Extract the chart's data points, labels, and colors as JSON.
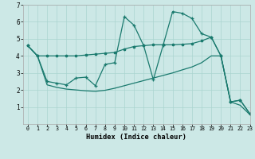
{
  "xlabel": "Humidex (Indice chaleur)",
  "xlim": [
    -0.5,
    23
  ],
  "ylim": [
    0,
    7
  ],
  "yticks": [
    1,
    2,
    3,
    4,
    5,
    6,
    7
  ],
  "xticks": [
    0,
    1,
    2,
    3,
    4,
    5,
    6,
    7,
    8,
    9,
    10,
    11,
    12,
    13,
    14,
    15,
    16,
    17,
    18,
    19,
    20,
    21,
    22,
    23
  ],
  "bg_color": "#cce8e6",
  "grid_color": "#aad4d0",
  "line_color": "#1a7a6e",
  "series": [
    {
      "x": [
        0,
        1,
        2,
        3,
        4,
        5,
        6,
        7,
        8,
        9,
        10,
        11,
        12,
        13,
        14,
        15,
        16,
        17,
        18,
        19,
        20,
        21,
        22,
        23
      ],
      "y": [
        4.6,
        4.0,
        4.0,
        4.0,
        4.0,
        4.0,
        4.05,
        4.1,
        4.15,
        4.2,
        4.4,
        4.55,
        4.6,
        4.65,
        4.65,
        4.65,
        4.68,
        4.72,
        4.88,
        5.1,
        4.0,
        1.3,
        1.4,
        0.6
      ],
      "marker": "o",
      "ms": 1.8,
      "lw": 0.9
    },
    {
      "x": [
        0,
        1,
        2,
        3,
        4,
        5,
        6,
        7,
        8,
        9,
        10,
        11,
        12,
        13,
        14,
        15,
        16,
        17,
        18,
        19,
        20,
        21,
        22,
        23
      ],
      "y": [
        4.6,
        4.0,
        2.5,
        2.4,
        2.3,
        2.7,
        2.75,
        2.25,
        3.5,
        3.6,
        6.3,
        5.8,
        4.6,
        2.6,
        4.6,
        6.6,
        6.5,
        6.2,
        5.3,
        5.1,
        4.0,
        1.3,
        1.4,
        0.6
      ],
      "marker": "+",
      "ms": 3.0,
      "lw": 0.9
    },
    {
      "x": [
        0,
        1,
        2,
        3,
        4,
        5,
        6,
        7,
        8,
        9,
        10,
        11,
        12,
        13,
        14,
        15,
        16,
        17,
        18,
        19,
        20,
        21,
        22,
        23
      ],
      "y": [
        4.6,
        4.0,
        2.3,
        2.15,
        2.05,
        2.0,
        1.95,
        1.92,
        1.98,
        2.1,
        2.25,
        2.4,
        2.55,
        2.7,
        2.85,
        3.0,
        3.18,
        3.35,
        3.6,
        4.0,
        4.0,
        1.3,
        1.1,
        0.55
      ],
      "marker": null,
      "ms": 0,
      "lw": 0.9
    }
  ]
}
